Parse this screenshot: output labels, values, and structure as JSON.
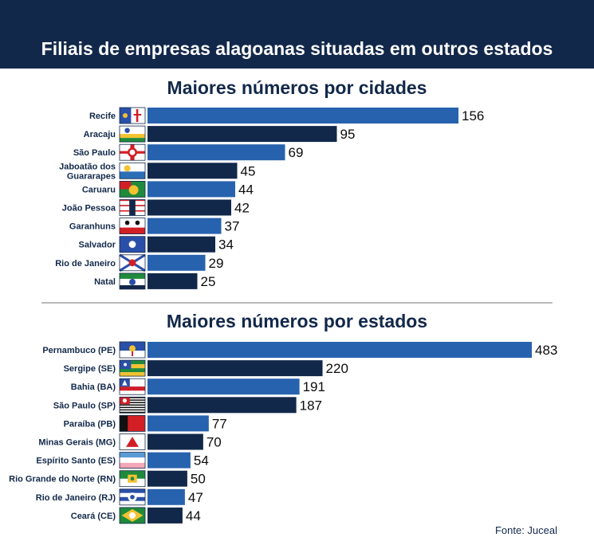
{
  "header": {
    "title": "Filiais de empresas alagoanas situadas em outros estados"
  },
  "colors": {
    "navy": "#12284a",
    "blue": "#2762ae",
    "header_bg": "#12284a",
    "divider": "#b9b9b9"
  },
  "chart_data": [
    {
      "type": "bar",
      "orientation": "horizontal",
      "title": "Maiores números por cidades",
      "categories": [
        "Recife",
        "Aracaju",
        "São Paulo",
        "Jaboatão dos Guararapes",
        "Caruaru",
        "João Pessoa",
        "Garanhuns",
        "Salvador",
        "Rio de Janeiro",
        "Natal"
      ],
      "values": [
        156,
        95,
        69,
        45,
        44,
        42,
        37,
        34,
        29,
        25
      ],
      "bar_colors": [
        "blue",
        "navy",
        "blue",
        "navy",
        "blue",
        "navy",
        "blue",
        "navy",
        "blue",
        "navy"
      ],
      "flags": [
        "recife-flag",
        "aracaju-flag",
        "sao-paulo-city-flag",
        "jaboatao-flag",
        "caruaru-flag",
        "joao-pessoa-flag",
        "garanhuns-flag",
        "salvador-flag",
        "rio-de-janeiro-city-flag",
        "natal-flag"
      ],
      "value_labels": true,
      "grid": false,
      "legend": "none"
    },
    {
      "type": "bar",
      "orientation": "horizontal",
      "title": "Maiores números por estados",
      "categories": [
        "Pernambuco (PE)",
        "Sergipe (SE)",
        "Bahia (BA)",
        "São Paulo (SP)",
        "Paraíba (PB)",
        "Minas Gerais (MG)",
        "Espírito Santo (ES)",
        "Rio Grande do Norte (RN)",
        "Rio de Janeiro (RJ)",
        "Ceará (CE)"
      ],
      "values": [
        483,
        220,
        191,
        187,
        77,
        70,
        54,
        50,
        47,
        44
      ],
      "bar_colors": [
        "blue",
        "navy",
        "blue",
        "navy",
        "blue",
        "navy",
        "blue",
        "navy",
        "blue",
        "navy"
      ],
      "flags": [
        "pernambuco-flag",
        "sergipe-flag",
        "bahia-flag",
        "sao-paulo-state-flag",
        "paraiba-flag",
        "minas-gerais-flag",
        "espirito-santo-flag",
        "rio-grande-do-norte-flag",
        "rio-de-janeiro-state-flag",
        "ceara-flag"
      ],
      "value_labels": true,
      "grid": false,
      "legend": "none"
    }
  ],
  "source": "Fonte: Juceal"
}
